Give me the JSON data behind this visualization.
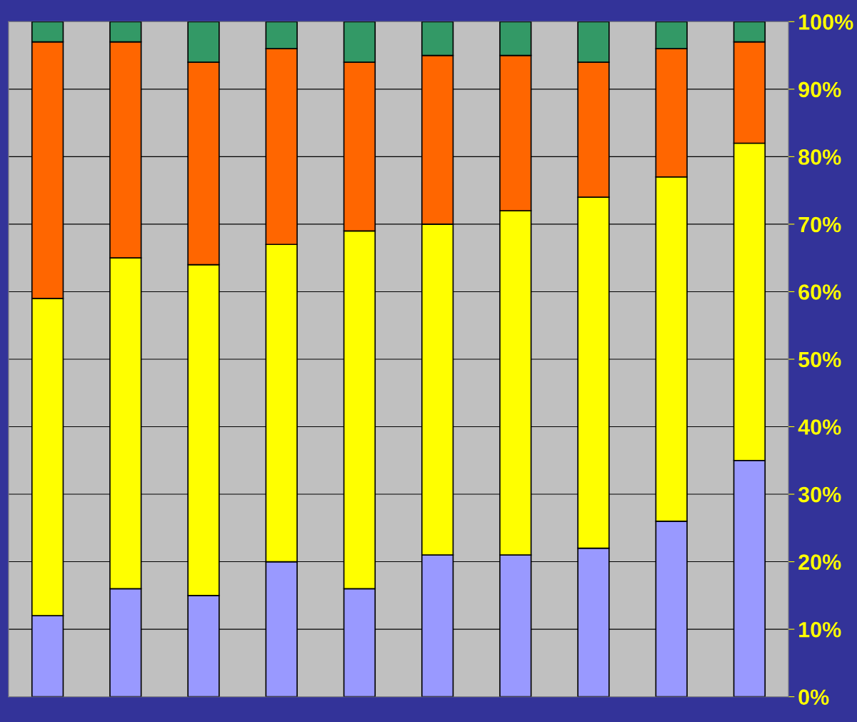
{
  "chart_data": {
    "type": "bar",
    "stacked": true,
    "categories": [
      null,
      null,
      null,
      null,
      null,
      null,
      null,
      null,
      null,
      null
    ],
    "series": [
      {
        "color": "#9999ff",
        "values": [
          12,
          16,
          15,
          20,
          16,
          21,
          21,
          22,
          26,
          35
        ]
      },
      {
        "color": "#ffff00",
        "values": [
          47,
          49,
          49,
          47,
          53,
          49,
          51,
          52,
          51,
          47
        ]
      },
      {
        "color": "#ff6600",
        "values": [
          38,
          32,
          30,
          29,
          25,
          25,
          23,
          20,
          19,
          15
        ]
      },
      {
        "color": "#339966",
        "values": [
          3,
          3,
          6,
          4,
          6,
          5,
          5,
          6,
          4,
          3
        ]
      }
    ],
    "ylim": [
      0,
      100
    ],
    "yticks": [
      {
        "value": 0,
        "label": "0%"
      },
      {
        "value": 10,
        "label": "10%"
      },
      {
        "value": 20,
        "label": "20%"
      },
      {
        "value": 30,
        "label": "30%"
      },
      {
        "value": 40,
        "label": "40%"
      },
      {
        "value": 50,
        "label": "50%"
      },
      {
        "value": 60,
        "label": "60%"
      },
      {
        "value": 70,
        "label": "70%"
      },
      {
        "value": 80,
        "label": "80%"
      },
      {
        "value": 90,
        "label": "90%"
      },
      {
        "value": 100,
        "label": "100%"
      }
    ],
    "grid": "y",
    "legend": false,
    "tick_labels": "y"
  }
}
